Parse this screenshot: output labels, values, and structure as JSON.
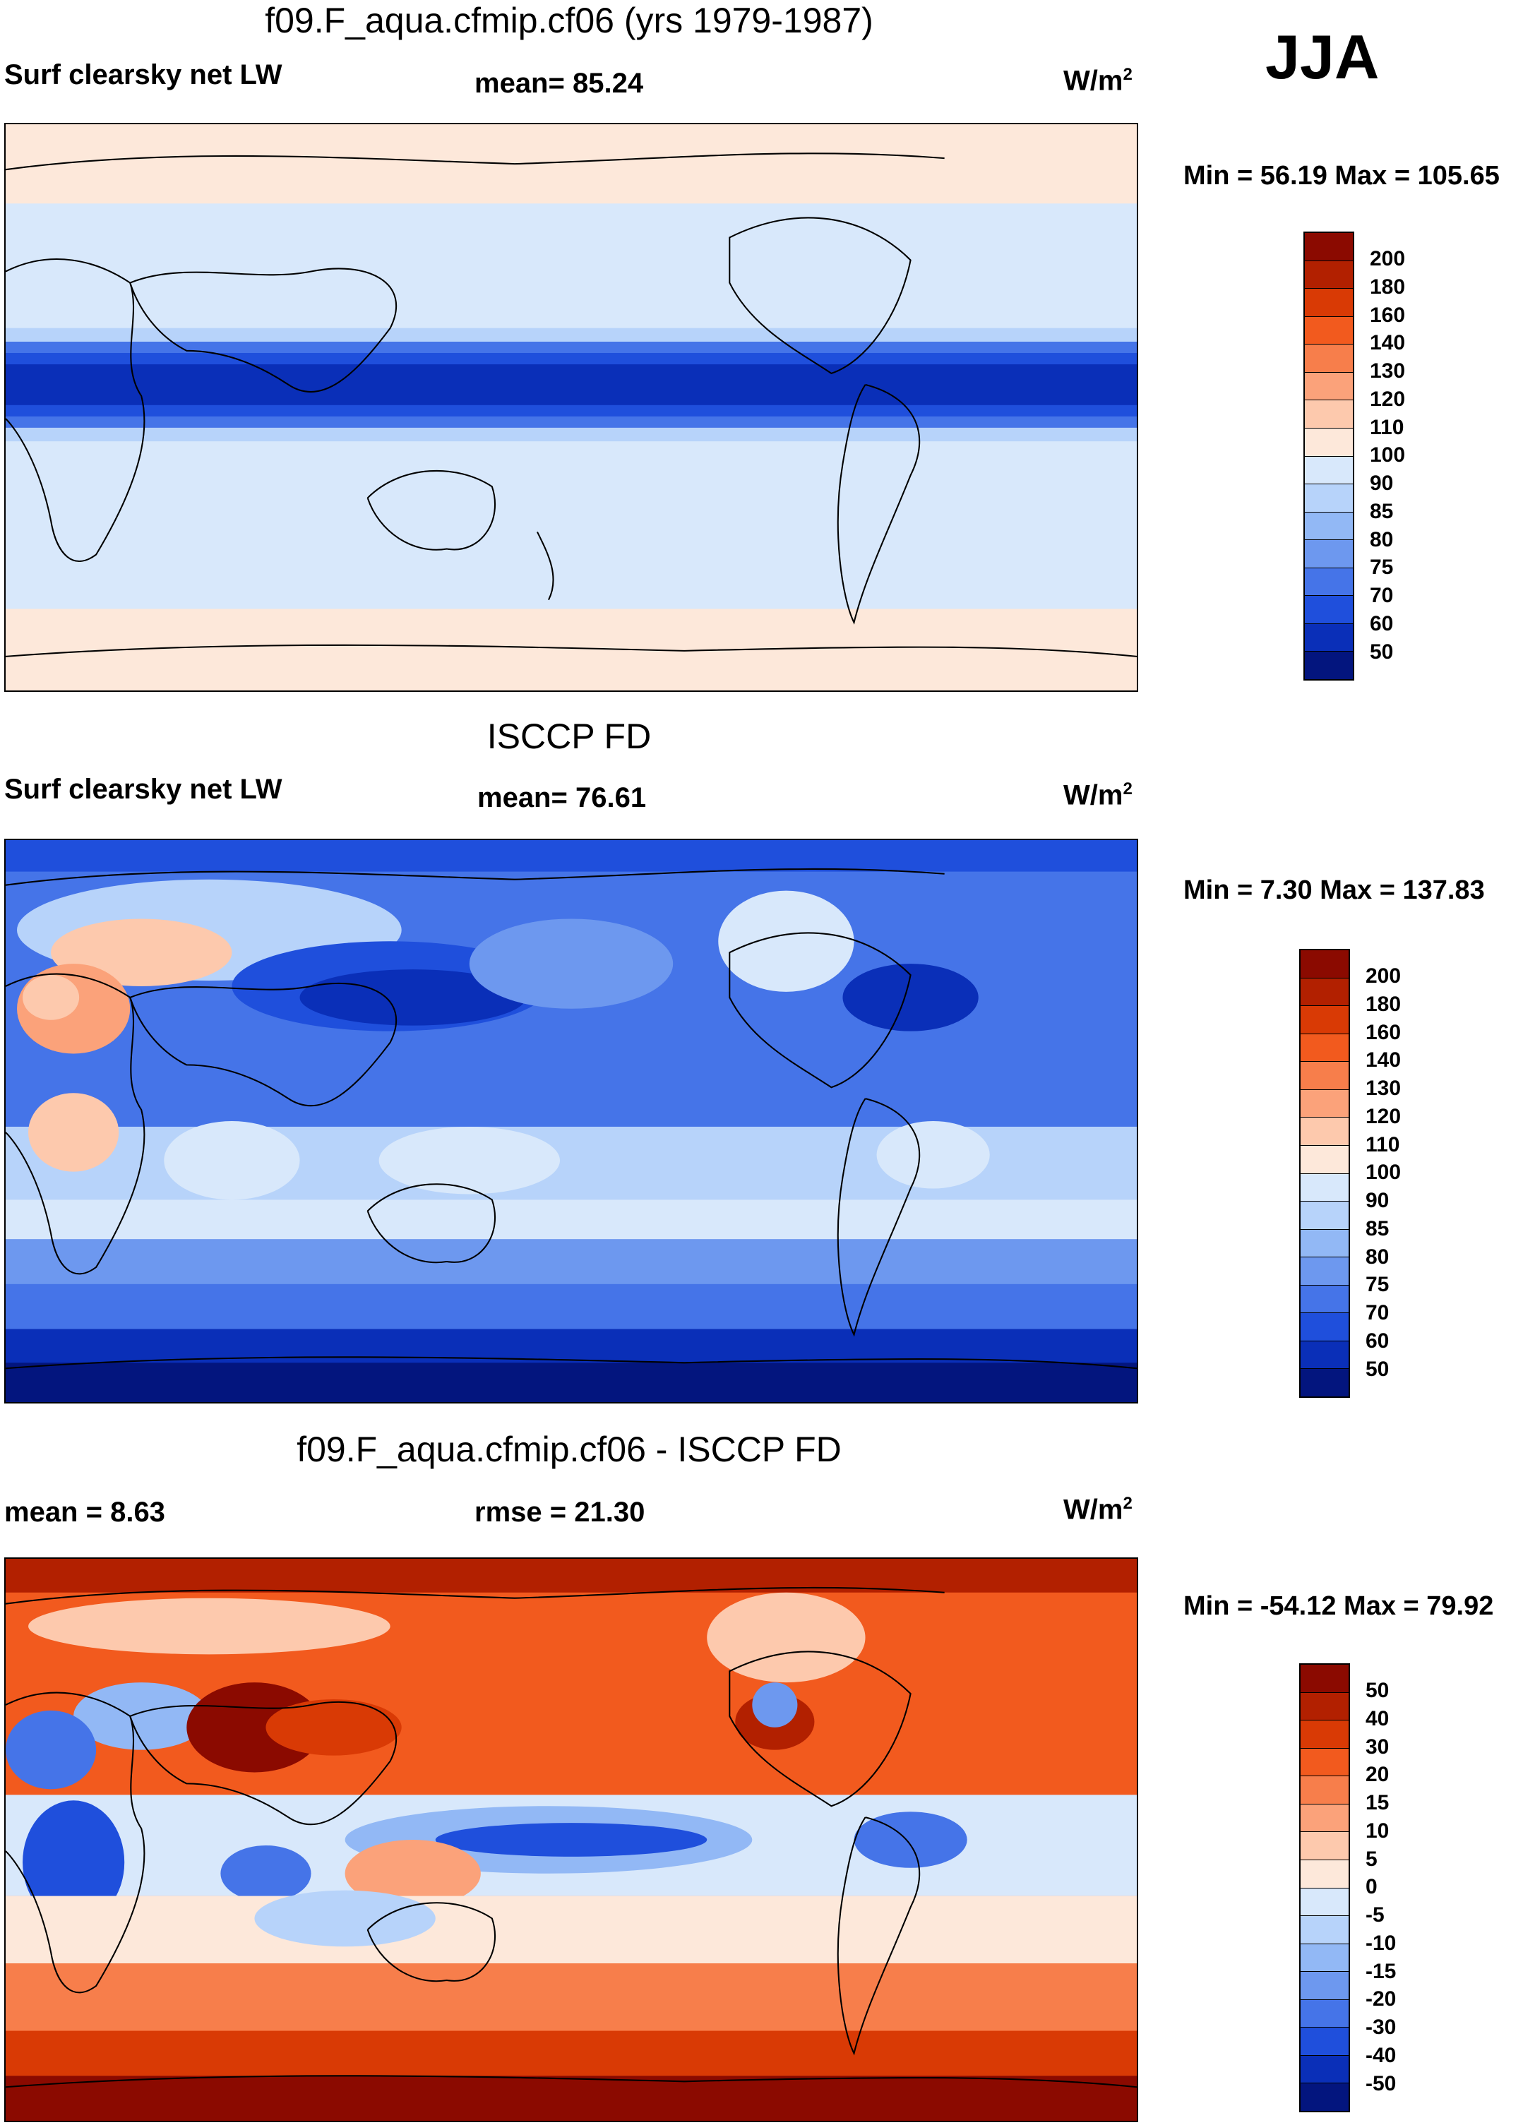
{
  "season": "JJA",
  "panels": [
    {
      "title": "f09.F_aqua.cfmip.cf06 (yrs 1979-1987)",
      "left_label": "Surf clearsky net LW",
      "mid_label": "mean=  85.24",
      "unit": "W/m",
      "unit_exp": "2",
      "minmax": "Min =  56.19 Max = 105.65"
    },
    {
      "title": "ISCCP FD",
      "left_label": "Surf clearsky net LW",
      "mid_label": "mean=  76.61",
      "unit": "W/m",
      "unit_exp": "2",
      "minmax": "Min =   7.30 Max = 137.83"
    },
    {
      "title": "f09.F_aqua.cfmip.cf06 - ISCCP FD",
      "left_label": "mean =   8.63",
      "mid_label": "rmse =  21.30",
      "unit": "W/m",
      "unit_exp": "2",
      "minmax": "Min = -54.12 Max =  79.92"
    }
  ],
  "colorbars": {
    "absolute": {
      "labels": [
        "200",
        "180",
        "160",
        "140",
        "130",
        "120",
        "110",
        "100",
        "90",
        "85",
        "80",
        "75",
        "70",
        "60",
        "50"
      ],
      "colors": [
        "#8b0a00",
        "#b22000",
        "#d93a05",
        "#f25a1e",
        "#f77e4b",
        "#fba27a",
        "#fdc9ad",
        "#fde8da",
        "#d8e8fb",
        "#b7d3fa",
        "#92b8f5",
        "#6d98ef",
        "#4574e8",
        "#1f4fdc",
        "#0a2fb8",
        "#03157e"
      ]
    },
    "difference": {
      "labels": [
        "50",
        "40",
        "30",
        "20",
        "15",
        "10",
        "5",
        "0",
        "-5",
        "-10",
        "-15",
        "-20",
        "-30",
        "-40",
        "-50"
      ],
      "colors": [
        "#8b0a00",
        "#b22000",
        "#d93a05",
        "#f25a1e",
        "#f77e4b",
        "#fba27a",
        "#fdc9ad",
        "#fde8da",
        "#d8e8fb",
        "#b7d3fa",
        "#92b8f5",
        "#6d98ef",
        "#4574e8",
        "#1f4fdc",
        "#0a2fb8",
        "#03157e"
      ]
    }
  }
}
